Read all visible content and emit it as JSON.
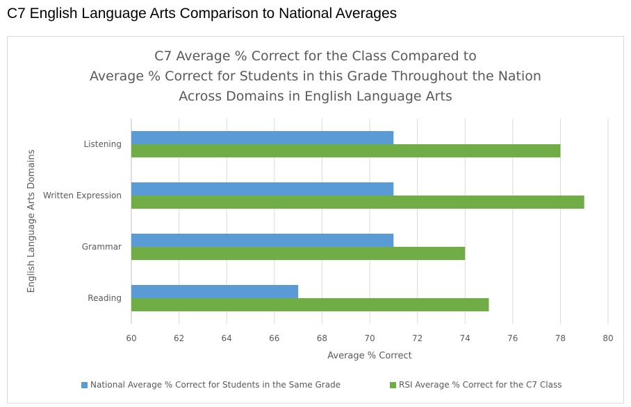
{
  "page_heading": "C7 English Language Arts Comparison to National Averages",
  "chart_data": {
    "type": "bar",
    "orientation": "horizontal",
    "title_lines": [
      "C7 Average % Correct for the Class Compared to",
      "Average % Correct for Students in this Grade Throughout the Nation",
      "Across Domains in English Language Arts"
    ],
    "xlabel": "Average % Correct",
    "ylabel": "English Language Arts Domains",
    "xlim": [
      60,
      80
    ],
    "xticks": [
      60,
      62,
      64,
      66,
      68,
      70,
      72,
      74,
      76,
      78,
      80
    ],
    "grid": true,
    "legend_position": "bottom",
    "categories": [
      "Listening",
      "Written Expression",
      "Grammar",
      "Reading"
    ],
    "series": [
      {
        "name": "National Average % Correct for Students in the Same Grade",
        "color": "#5b9bd5",
        "values": [
          71,
          71,
          71,
          67
        ]
      },
      {
        "name": "RSI Average % Correct for the C7 Class",
        "color": "#70ad47",
        "values": [
          78,
          79,
          74,
          75
        ]
      }
    ]
  }
}
